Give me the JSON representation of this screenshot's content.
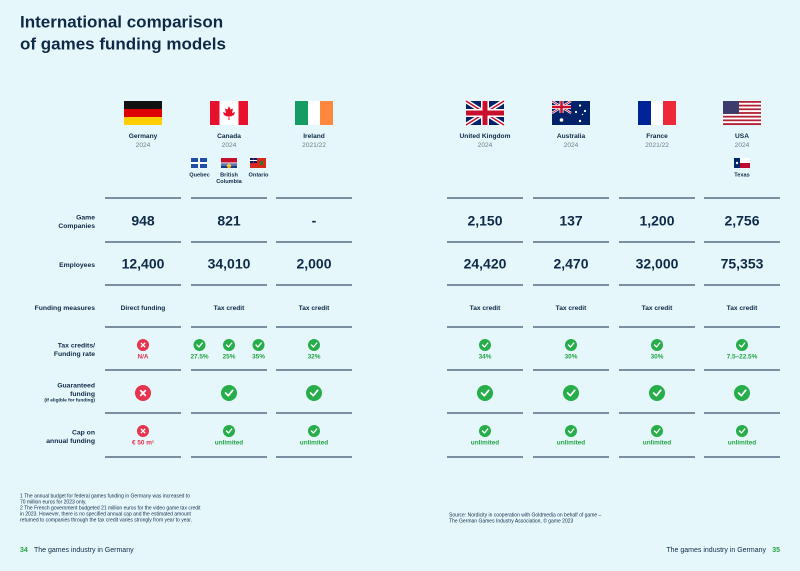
{
  "title_lines": [
    "International comparison",
    "of games funding models"
  ],
  "row_labels": {
    "companies": [
      "Game",
      "Companies"
    ],
    "employees": [
      "Employees"
    ],
    "funding": [
      "Funding measures"
    ],
    "tax": [
      "Tax credits/",
      "Funding rate"
    ],
    "guaranteed": [
      "Guaranteed",
      "funding"
    ],
    "guaranteed_note": "(if eligible for funding)",
    "cap": [
      "Cap on",
      "annual funding"
    ]
  },
  "countries": [
    {
      "name": "Germany",
      "year": "2024",
      "regions": [],
      "companies": "948",
      "employees": "12,400",
      "funding": "Direct funding",
      "tax": [
        {
          "status": "no",
          "label": "N/A"
        }
      ],
      "guaranteed": "no",
      "cap": {
        "status": "no",
        "label": "€ 50 m¹"
      }
    },
    {
      "name": "Canada",
      "year": "2024",
      "regions": [
        [
          "Quebec"
        ],
        [
          "British",
          "Columbia"
        ],
        [
          "Ontario"
        ]
      ],
      "companies": "821",
      "employees": "34,010",
      "funding": "Tax credit",
      "tax": [
        {
          "status": "yes",
          "label": "27.5%"
        },
        {
          "status": "yes",
          "label": "25%"
        },
        {
          "status": "yes",
          "label": "35%"
        }
      ],
      "guaranteed": "yes",
      "cap": {
        "status": "yes",
        "label": "unlimited"
      }
    },
    {
      "name": "Ireland",
      "year": "2021/22",
      "regions": [],
      "companies": "-",
      "employees": "2,000",
      "funding": "Tax credit",
      "tax": [
        {
          "status": "yes",
          "label": "32%"
        }
      ],
      "guaranteed": "yes",
      "cap": {
        "status": "yes",
        "label": "unlimited"
      }
    },
    {
      "name": "United Kingdom",
      "year": "2024",
      "regions": [],
      "companies": "2,150",
      "employees": "24,420",
      "funding": "Tax credit",
      "tax": [
        {
          "status": "yes",
          "label": "34%"
        }
      ],
      "guaranteed": "yes",
      "cap": {
        "status": "yes",
        "label": "unlimited"
      }
    },
    {
      "name": "Australia",
      "year": "2024",
      "regions": [],
      "companies": "137",
      "employees": "2,470",
      "funding": "Tax credit",
      "tax": [
        {
          "status": "yes",
          "label": "30%"
        }
      ],
      "guaranteed": "yes",
      "cap": {
        "status": "yes",
        "label": "unlimited"
      }
    },
    {
      "name": "France",
      "year": "2021/22",
      "regions": [],
      "companies": "1,200",
      "employees": "32,000",
      "funding": "Tax credit",
      "tax": [
        {
          "status": "yes",
          "label": "30%"
        }
      ],
      "guaranteed": "yes",
      "cap": {
        "status": "yes",
        "label": "unlimited"
      }
    },
    {
      "name": "USA",
      "year": "2024",
      "regions": [
        [
          "Texas"
        ]
      ],
      "companies": "2,756",
      "employees": "75,353",
      "funding": "Tax credit",
      "tax": [
        {
          "status": "yes",
          "label": "7.5–22.5%"
        }
      ],
      "guaranteed": "yes",
      "cap": {
        "status": "yes",
        "label": "unlimited"
      }
    }
  ],
  "footnotes": [
    [
      "1 The annual budget for federal games funding in Germany was increased to",
      "70 million euros for 2023 only."
    ],
    [
      "2 The French government budgeted 21 million euros for the video game tax credit",
      "in 2023. However, there is no specified annual cap and the estimated amount",
      "returned to companies through the tax credit varies strongly from year to year."
    ]
  ],
  "source": [
    "Source: Nordicity in cooperation with Goldmedia on behalf of game –",
    "The German Games Industry Association, © game 2023"
  ],
  "footer_left": {
    "page": "34",
    "text": "The games industry in Germany"
  },
  "footer_right": {
    "text": "The games industry in Germany",
    "page": "35"
  }
}
